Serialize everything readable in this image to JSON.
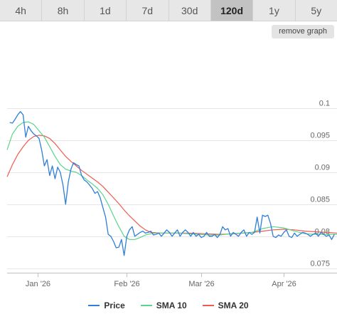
{
  "tabs": [
    {
      "label": "4h",
      "active": false
    },
    {
      "label": "8h",
      "active": false
    },
    {
      "label": "1d",
      "active": false
    },
    {
      "label": "7d",
      "active": false
    },
    {
      "label": "30d",
      "active": false
    },
    {
      "label": "120d",
      "active": true
    },
    {
      "label": "1y",
      "active": false
    },
    {
      "label": "5y",
      "active": false
    }
  ],
  "remove_graph_label": "remove graph",
  "chart_data": {
    "type": "line",
    "x_tick_labels": [
      "Jan '26",
      "Feb '26",
      "Mar '26",
      "Apr '26"
    ],
    "x_tick_days": [
      -0.5,
      33,
      61,
      92
    ],
    "x_range_days": [
      -12,
      112
    ],
    "y_tick_labels": [
      "0.1",
      "0.095",
      "0.09",
      "0.085",
      "0.08",
      "0.075"
    ],
    "y_ticks": [
      0.1,
      0.095,
      0.09,
      0.085,
      0.08,
      0.075
    ],
    "ylim": [
      0.0743,
      0.1096
    ],
    "grid": true,
    "legend_position": "bottom",
    "series": [
      {
        "name": "Price",
        "color": "#2f7ed8",
        "points": [
          [
            -11,
            0.0978
          ],
          [
            -10,
            0.0977
          ],
          [
            -9,
            0.0983
          ],
          [
            -8,
            0.099
          ],
          [
            -7,
            0.0995
          ],
          [
            -6,
            0.099
          ],
          [
            -5,
            0.0955
          ],
          [
            -4,
            0.0972
          ],
          [
            -3,
            0.0965
          ],
          [
            -2,
            0.096
          ],
          [
            -1,
            0.0957
          ],
          [
            0,
            0.0953
          ],
          [
            1,
            0.0935
          ],
          [
            2,
            0.091
          ],
          [
            3,
            0.092
          ],
          [
            4,
            0.0895
          ],
          [
            5,
            0.091
          ],
          [
            6,
            0.089
          ],
          [
            7,
            0.0908
          ],
          [
            8,
            0.09
          ],
          [
            9,
            0.088
          ],
          [
            10,
            0.085
          ],
          [
            11,
            0.0885
          ],
          [
            12,
            0.0905
          ],
          [
            13,
            0.0915
          ],
          [
            14,
            0.0912
          ],
          [
            15,
            0.091
          ],
          [
            16,
            0.0895
          ],
          [
            17,
            0.0888
          ],
          [
            18,
            0.0885
          ],
          [
            19,
            0.088
          ],
          [
            20,
            0.0875
          ],
          [
            21,
            0.0867
          ],
          [
            22,
            0.087
          ],
          [
            23,
            0.086
          ],
          [
            24,
            0.0845
          ],
          [
            25,
            0.083
          ],
          [
            26,
            0.0803
          ],
          [
            27,
            0.08
          ],
          [
            28,
            0.0792
          ],
          [
            29,
            0.0782
          ],
          [
            30,
            0.0783
          ],
          [
            31,
            0.0795
          ],
          [
            32,
            0.077
          ],
          [
            33,
            0.08
          ],
          [
            34,
            0.081
          ],
          [
            35,
            0.0815
          ],
          [
            36,
            0.08
          ],
          [
            37,
            0.0803
          ],
          [
            38,
            0.0806
          ],
          [
            39,
            0.0808
          ],
          [
            40,
            0.0805
          ],
          [
            41,
            0.0806
          ],
          [
            42,
            0.0808
          ],
          [
            43,
            0.0802
          ],
          [
            44,
            0.0803
          ],
          [
            45,
            0.0805
          ],
          [
            46,
            0.08
          ],
          [
            47,
            0.0805
          ],
          [
            48,
            0.081
          ],
          [
            49,
            0.0806
          ],
          [
            50,
            0.08
          ],
          [
            51,
            0.0805
          ],
          [
            52,
            0.081
          ],
          [
            53,
            0.08
          ],
          [
            54,
            0.0806
          ],
          [
            55,
            0.081
          ],
          [
            56,
            0.0806
          ],
          [
            57,
            0.08
          ],
          [
            58,
            0.0806
          ],
          [
            59,
            0.08
          ],
          [
            60,
            0.0803
          ],
          [
            61,
            0.0798
          ],
          [
            62,
            0.08
          ],
          [
            63,
            0.0806
          ],
          [
            64,
            0.08
          ],
          [
            65,
            0.08
          ],
          [
            66,
            0.0803
          ],
          [
            67,
            0.0798
          ],
          [
            68,
            0.0803
          ],
          [
            69,
            0.0815
          ],
          [
            70,
            0.081
          ],
          [
            71,
            0.0812
          ],
          [
            72,
            0.08
          ],
          [
            73,
            0.0806
          ],
          [
            74,
            0.0803
          ],
          [
            75,
            0.08
          ],
          [
            76,
            0.0806
          ],
          [
            77,
            0.081
          ],
          [
            78,
            0.08
          ],
          [
            79,
            0.0806
          ],
          [
            80,
            0.0803
          ],
          [
            81,
            0.0806
          ],
          [
            82,
            0.083
          ],
          [
            83,
            0.0805
          ],
          [
            84,
            0.0833
          ],
          [
            85,
            0.0831
          ],
          [
            86,
            0.0833
          ],
          [
            87,
            0.082
          ],
          [
            88,
            0.08
          ],
          [
            89,
            0.0798
          ],
          [
            90,
            0.0802
          ],
          [
            91,
            0.08
          ],
          [
            92,
            0.0806
          ],
          [
            93,
            0.081
          ],
          [
            94,
            0.08
          ],
          [
            95,
            0.0798
          ],
          [
            96,
            0.0805
          ],
          [
            97,
            0.08
          ],
          [
            98,
            0.0803
          ],
          [
            99,
            0.0806
          ],
          [
            100,
            0.0805
          ],
          [
            101,
            0.0803
          ],
          [
            102,
            0.08
          ],
          [
            103,
            0.0803
          ],
          [
            104,
            0.0805
          ],
          [
            105,
            0.08
          ],
          [
            106,
            0.0806
          ],
          [
            107,
            0.0803
          ],
          [
            108,
            0.08
          ],
          [
            109,
            0.0802
          ],
          [
            110,
            0.0795
          ],
          [
            111,
            0.0803
          ]
        ]
      },
      {
        "name": "SMA 10",
        "color": "#5cd48a",
        "points": [
          [
            -12,
            0.0935
          ],
          [
            -10,
            0.096
          ],
          [
            -8,
            0.0972
          ],
          [
            -6,
            0.0978
          ],
          [
            -4,
            0.0979
          ],
          [
            -2,
            0.0975
          ],
          [
            0,
            0.0965
          ],
          [
            2,
            0.0955
          ],
          [
            4,
            0.094
          ],
          [
            6,
            0.0925
          ],
          [
            8,
            0.0912
          ],
          [
            10,
            0.0905
          ],
          [
            12,
            0.0902
          ],
          [
            14,
            0.09
          ],
          [
            16,
            0.0895
          ],
          [
            18,
            0.0888
          ],
          [
            20,
            0.0882
          ],
          [
            22,
            0.0875
          ],
          [
            24,
            0.0865
          ],
          [
            26,
            0.085
          ],
          [
            28,
            0.0832
          ],
          [
            30,
            0.0815
          ],
          [
            32,
            0.08
          ],
          [
            34,
            0.0795
          ],
          [
            36,
            0.0795
          ],
          [
            38,
            0.0798
          ],
          [
            40,
            0.0802
          ],
          [
            42,
            0.0804
          ],
          [
            44,
            0.0805
          ],
          [
            48,
            0.0805
          ],
          [
            52,
            0.0805
          ],
          [
            56,
            0.0804
          ],
          [
            60,
            0.0803
          ],
          [
            64,
            0.0802
          ],
          [
            68,
            0.0802
          ],
          [
            72,
            0.0804
          ],
          [
            76,
            0.0805
          ],
          [
            80,
            0.0806
          ],
          [
            84,
            0.0812
          ],
          [
            88,
            0.0815
          ],
          [
            92,
            0.0813
          ],
          [
            96,
            0.0808
          ],
          [
            100,
            0.0804
          ],
          [
            104,
            0.0803
          ],
          [
            108,
            0.0803
          ],
          [
            112,
            0.0803
          ]
        ]
      },
      {
        "name": "SMA 20",
        "color": "#ef5b4f",
        "points": [
          [
            -12,
            0.0893
          ],
          [
            -10,
            0.0912
          ],
          [
            -8,
            0.0928
          ],
          [
            -6,
            0.094
          ],
          [
            -4,
            0.095
          ],
          [
            -2,
            0.0956
          ],
          [
            0,
            0.0958
          ],
          [
            2,
            0.0957
          ],
          [
            4,
            0.0953
          ],
          [
            6,
            0.0945
          ],
          [
            8,
            0.0935
          ],
          [
            10,
            0.0925
          ],
          [
            12,
            0.0917
          ],
          [
            14,
            0.091
          ],
          [
            16,
            0.0903
          ],
          [
            18,
            0.0897
          ],
          [
            20,
            0.0891
          ],
          [
            22,
            0.0885
          ],
          [
            24,
            0.0878
          ],
          [
            26,
            0.0869
          ],
          [
            28,
            0.086
          ],
          [
            30,
            0.0851
          ],
          [
            32,
            0.0841
          ],
          [
            34,
            0.0832
          ],
          [
            36,
            0.0824
          ],
          [
            38,
            0.0816
          ],
          [
            40,
            0.081
          ],
          [
            42,
            0.0806
          ],
          [
            46,
            0.0805
          ],
          [
            50,
            0.0805
          ],
          [
            56,
            0.0805
          ],
          [
            62,
            0.0804
          ],
          [
            68,
            0.0803
          ],
          [
            74,
            0.0804
          ],
          [
            80,
            0.0806
          ],
          [
            84,
            0.0808
          ],
          [
            88,
            0.081
          ],
          [
            92,
            0.0811
          ],
          [
            96,
            0.081
          ],
          [
            100,
            0.0808
          ],
          [
            104,
            0.0807
          ],
          [
            108,
            0.0806
          ],
          [
            112,
            0.0805
          ]
        ]
      }
    ]
  }
}
